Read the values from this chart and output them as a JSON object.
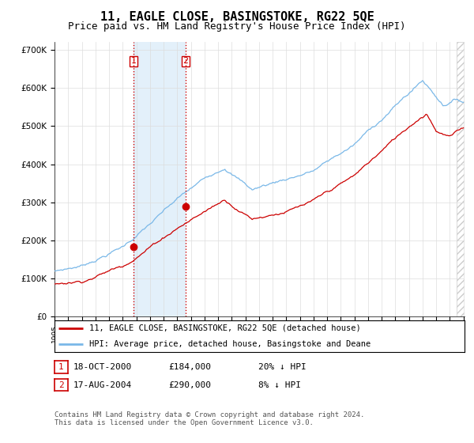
{
  "title": "11, EAGLE CLOSE, BASINGSTOKE, RG22 5QE",
  "subtitle": "Price paid vs. HM Land Registry's House Price Index (HPI)",
  "title_fontsize": 11,
  "subtitle_fontsize": 9,
  "ylim": [
    0,
    720000
  ],
  "yticks": [
    0,
    100000,
    200000,
    300000,
    400000,
    500000,
    600000,
    700000
  ],
  "ytick_labels": [
    "£0",
    "£100K",
    "£200K",
    "£300K",
    "£400K",
    "£500K",
    "£600K",
    "£700K"
  ],
  "hpi_color": "#7ab8e8",
  "price_color": "#cc0000",
  "sale1_year": 2000.79,
  "sale1_price": 184000,
  "sale2_year": 2004.62,
  "sale2_price": 290000,
  "vline_color": "#cc0000",
  "shade_color": "#d8eaf8",
  "hatch_color": "#cccccc",
  "legend1": "11, EAGLE CLOSE, BASINGSTOKE, RG22 5QE (detached house)",
  "legend2": "HPI: Average price, detached house, Basingstoke and Deane",
  "table_row1": [
    "1",
    "18-OCT-2000",
    "£184,000",
    "20% ↓ HPI"
  ],
  "table_row2": [
    "2",
    "17-AUG-2004",
    "£290,000",
    "8% ↓ HPI"
  ],
  "footnote": "Contains HM Land Registry data © Crown copyright and database right 2024.\nThis data is licensed under the Open Government Licence v3.0.",
  "background_color": "#ffffff",
  "grid_color": "#dddddd"
}
